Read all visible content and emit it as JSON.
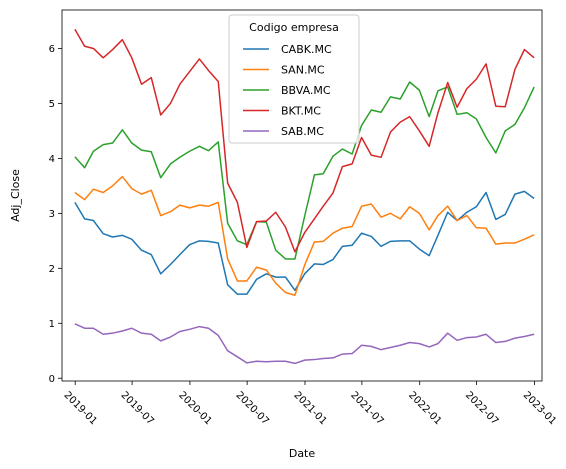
{
  "chart_data": {
    "type": "line",
    "xlabel": "Date",
    "ylabel": "Adj_Close",
    "xlim": [
      "2018-11-20",
      "2023-01-25"
    ],
    "ylim": [
      -0.05,
      6.7
    ],
    "grid": false,
    "legend": {
      "title": "Codigo empresa",
      "placement": "top-center"
    },
    "x_ticks": [
      {
        "date": "2019-01-01",
        "label": "2019-01"
      },
      {
        "date": "2019-07-01",
        "label": "2019-07"
      },
      {
        "date": "2020-01-01",
        "label": "2020-01"
      },
      {
        "date": "2020-07-01",
        "label": "2020-07"
      },
      {
        "date": "2021-01-01",
        "label": "2021-01"
      },
      {
        "date": "2021-07-01",
        "label": "2021-07"
      },
      {
        "date": "2022-01-01",
        "label": "2022-01"
      },
      {
        "date": "2022-07-01",
        "label": "2022-07"
      },
      {
        "date": "2023-01-01",
        "label": "2023-01"
      }
    ],
    "y_ticks": [
      0,
      1,
      2,
      3,
      4,
      5,
      6
    ],
    "x": [
      "2018-12-31",
      "2019-01-31",
      "2019-02-28",
      "2019-03-31",
      "2019-04-30",
      "2019-05-31",
      "2019-06-30",
      "2019-07-31",
      "2019-08-31",
      "2019-09-30",
      "2019-10-31",
      "2019-11-30",
      "2019-12-31",
      "2020-01-31",
      "2020-02-29",
      "2020-03-31",
      "2020-04-30",
      "2020-05-31",
      "2020-06-30",
      "2020-07-31",
      "2020-08-31",
      "2020-09-30",
      "2020-10-31",
      "2020-11-30",
      "2020-12-31",
      "2021-01-31",
      "2021-02-28",
      "2021-03-31",
      "2021-04-30",
      "2021-05-31",
      "2021-06-30",
      "2021-07-31",
      "2021-08-31",
      "2021-09-30",
      "2021-10-31",
      "2021-11-30",
      "2021-12-31",
      "2022-01-31",
      "2022-02-28",
      "2022-03-31",
      "2022-04-30",
      "2022-05-31",
      "2022-06-30",
      "2022-07-31",
      "2022-08-31",
      "2022-09-30",
      "2022-10-31",
      "2022-11-30",
      "2022-12-31"
    ],
    "series": [
      {
        "name": "CABK.MC",
        "color": "#1f77b4",
        "values": [
          3.2,
          2.9,
          2.87,
          2.63,
          2.57,
          2.6,
          2.53,
          2.33,
          2.25,
          1.9,
          2.07,
          2.25,
          2.43,
          2.5,
          2.49,
          2.46,
          1.7,
          1.53,
          1.53,
          1.8,
          1.9,
          1.84,
          1.84,
          1.6,
          1.9,
          2.08,
          2.07,
          2.16,
          2.4,
          2.42,
          2.64,
          2.58,
          2.4,
          2.49,
          2.5,
          2.5,
          2.35,
          2.23,
          2.6,
          3.02,
          2.87,
          3.02,
          3.12,
          3.38,
          2.89,
          2.98,
          3.35,
          3.4,
          3.27
        ]
      },
      {
        "name": "SAN.MC",
        "color": "#ff7f0e",
        "values": [
          3.38,
          3.25,
          3.44,
          3.38,
          3.5,
          3.67,
          3.45,
          3.35,
          3.42,
          2.96,
          3.03,
          3.15,
          3.1,
          3.15,
          3.13,
          3.2,
          2.17,
          1.77,
          1.77,
          2.02,
          1.97,
          1.73,
          1.56,
          1.51,
          2.06,
          2.48,
          2.49,
          2.64,
          2.73,
          2.76,
          3.13,
          3.17,
          2.93,
          3.0,
          2.9,
          3.12,
          3.0,
          2.7,
          2.96,
          3.13,
          2.87,
          2.96,
          2.74,
          2.73,
          2.44,
          2.46,
          2.46,
          2.53,
          2.61
        ]
      },
      {
        "name": "BBVA.MC",
        "color": "#2ca02c",
        "values": [
          4.03,
          3.83,
          4.13,
          4.25,
          4.28,
          4.52,
          4.28,
          4.15,
          4.12,
          3.65,
          3.9,
          4.02,
          4.13,
          4.22,
          4.14,
          4.3,
          2.82,
          2.5,
          2.43,
          2.85,
          2.84,
          2.33,
          2.17,
          2.17,
          2.95,
          3.7,
          3.72,
          4.04,
          4.17,
          4.08,
          4.6,
          4.88,
          4.84,
          5.12,
          5.08,
          5.39,
          5.24,
          4.76,
          5.23,
          5.3,
          4.8,
          4.83,
          4.72,
          4.38,
          4.1,
          4.5,
          4.62,
          4.92,
          5.3
        ]
      },
      {
        "name": "BKT.MC",
        "color": "#d62728",
        "values": [
          6.35,
          6.04,
          6.0,
          5.83,
          5.98,
          6.16,
          5.83,
          5.35,
          5.47,
          4.79,
          5.0,
          5.35,
          5.58,
          5.81,
          5.6,
          5.4,
          3.55,
          3.2,
          2.38,
          2.85,
          2.86,
          3.02,
          2.75,
          2.3,
          2.65,
          2.9,
          3.13,
          3.37,
          3.85,
          3.9,
          4.38,
          4.06,
          4.02,
          4.48,
          4.66,
          4.76,
          4.5,
          4.22,
          4.83,
          5.38,
          4.93,
          5.27,
          5.44,
          5.72,
          4.95,
          4.94,
          5.62,
          5.98,
          5.83
        ]
      },
      {
        "name": "SAB.MC",
        "color": "#9467bd",
        "values": [
          0.99,
          0.91,
          0.91,
          0.8,
          0.82,
          0.86,
          0.91,
          0.82,
          0.8,
          0.68,
          0.75,
          0.85,
          0.89,
          0.94,
          0.91,
          0.78,
          0.5,
          0.39,
          0.28,
          0.31,
          0.3,
          0.31,
          0.31,
          0.27,
          0.33,
          0.34,
          0.36,
          0.37,
          0.44,
          0.45,
          0.6,
          0.58,
          0.52,
          0.56,
          0.6,
          0.65,
          0.63,
          0.57,
          0.63,
          0.82,
          0.69,
          0.74,
          0.75,
          0.8,
          0.65,
          0.67,
          0.73,
          0.76,
          0.8
        ]
      }
    ]
  }
}
